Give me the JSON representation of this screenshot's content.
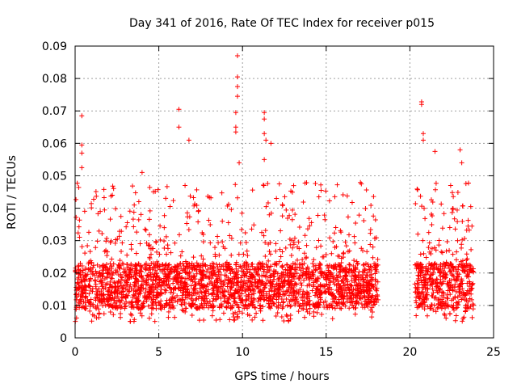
{
  "chart_data": {
    "type": "scatter",
    "title": "Day 341 of 2016, Rate Of TEC Index for receiver p015",
    "xlabel": "GPS time / hours",
    "ylabel": "ROTI / TECUs",
    "xlim": [
      0,
      25
    ],
    "ylim": [
      0,
      0.09
    ],
    "xticks": [
      0,
      5,
      10,
      15,
      20,
      25
    ],
    "yticks": [
      0,
      0.01,
      0.02,
      0.03,
      0.04,
      0.05,
      0.06,
      0.07,
      0.08,
      0.09
    ],
    "xtick_labels": [
      "0",
      "5",
      "10",
      "15",
      "20",
      "25"
    ],
    "ytick_labels": [
      "0",
      "0.01",
      "0.02",
      "0.03",
      "0.04",
      "0.05",
      "0.06",
      "0.07",
      "0.08",
      "0.09"
    ],
    "grid": true,
    "marker": "+",
    "color": "#ff0000",
    "data_segments": [
      {
        "x_start": 0.0,
        "x_end": 9.0
      },
      {
        "x_start": 9.0,
        "x_end": 18.1
      },
      {
        "x_start": 20.3,
        "x_end": 23.8
      }
    ],
    "typical_range": [
      0.005,
      0.03
    ],
    "highlight_points": [
      {
        "x": 0.4,
        "y": 0.0685
      },
      {
        "x": 0.4,
        "y": 0.0595
      },
      {
        "x": 0.4,
        "y": 0.057
      },
      {
        "x": 0.4,
        "y": 0.0525
      },
      {
        "x": 4.0,
        "y": 0.051
      },
      {
        "x": 6.2,
        "y": 0.0705
      },
      {
        "x": 6.2,
        "y": 0.065
      },
      {
        "x": 6.8,
        "y": 0.061
      },
      {
        "x": 9.7,
        "y": 0.087
      },
      {
        "x": 9.7,
        "y": 0.0805
      },
      {
        "x": 9.7,
        "y": 0.0775
      },
      {
        "x": 9.7,
        "y": 0.0745
      },
      {
        "x": 9.6,
        "y": 0.0695
      },
      {
        "x": 9.6,
        "y": 0.065
      },
      {
        "x": 9.6,
        "y": 0.0635
      },
      {
        "x": 9.8,
        "y": 0.054
      },
      {
        "x": 11.3,
        "y": 0.0695
      },
      {
        "x": 11.3,
        "y": 0.0675
      },
      {
        "x": 11.3,
        "y": 0.063
      },
      {
        "x": 11.4,
        "y": 0.061
      },
      {
        "x": 11.7,
        "y": 0.06
      },
      {
        "x": 11.3,
        "y": 0.055
      },
      {
        "x": 20.7,
        "y": 0.0728
      },
      {
        "x": 20.7,
        "y": 0.072
      },
      {
        "x": 20.8,
        "y": 0.063
      },
      {
        "x": 20.8,
        "y": 0.061
      },
      {
        "x": 21.5,
        "y": 0.0575
      },
      {
        "x": 23.0,
        "y": 0.058
      },
      {
        "x": 23.1,
        "y": 0.054
      },
      {
        "x": 17.1,
        "y": 0.0475
      },
      {
        "x": 14.7,
        "y": 0.0455
      }
    ]
  }
}
